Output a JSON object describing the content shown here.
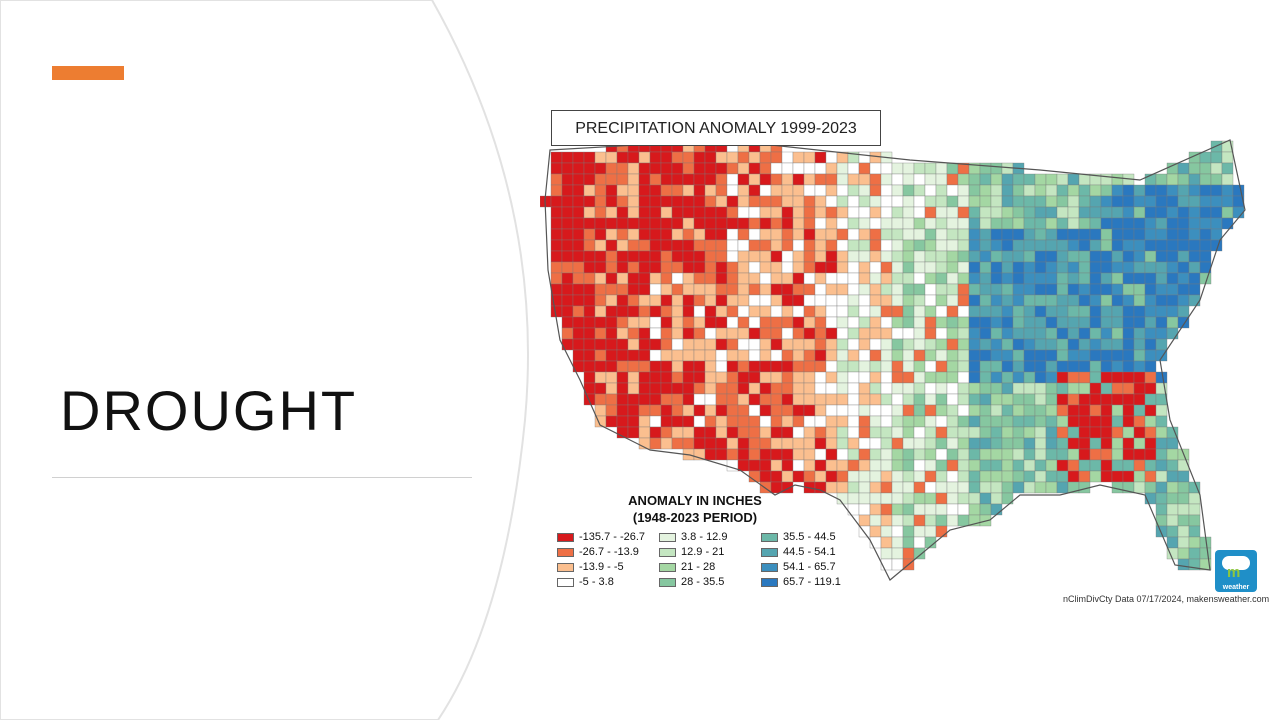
{
  "slide": {
    "title": "DROUGHT",
    "accent_color": "#ED7D31"
  },
  "map": {
    "title": "PRECIPITATION ANOMALY 1999-2023",
    "legend_title_line1": "ANOMALY IN INCHES",
    "legend_title_line2": "(1948-2023 PERIOD)",
    "legend": [
      {
        "label": "-135.7 - -26.7",
        "color": "#d7191c"
      },
      {
        "label": "-26.7 - -13.9",
        "color": "#ee6f45"
      },
      {
        "label": "-13.9 - -5",
        "color": "#fbbf8f"
      },
      {
        "label": "-5 - 3.8",
        "color": "#ffffff"
      },
      {
        "label": "3.8 - 12.9",
        "color": "#e4f3df"
      },
      {
        "label": "12.9 - 21",
        "color": "#c4e6c1"
      },
      {
        "label": "21 - 28",
        "color": "#a4d7a3"
      },
      {
        "label": "28 - 35.5",
        "color": "#86c7a0"
      },
      {
        "label": "35.5 - 44.5",
        "color": "#6cb8a8"
      },
      {
        "label": "44.5 - 54.1",
        "color": "#55a5b0"
      },
      {
        "label": "54.1 - 65.7",
        "color": "#3c8fbe"
      },
      {
        "label": "65.7 - 119.1",
        "color": "#2a78bf"
      }
    ],
    "credit": "nClimDivCty Data 07/17/2024, makensweather.com",
    "logo_text": "weather",
    "logo_mark": "m"
  }
}
